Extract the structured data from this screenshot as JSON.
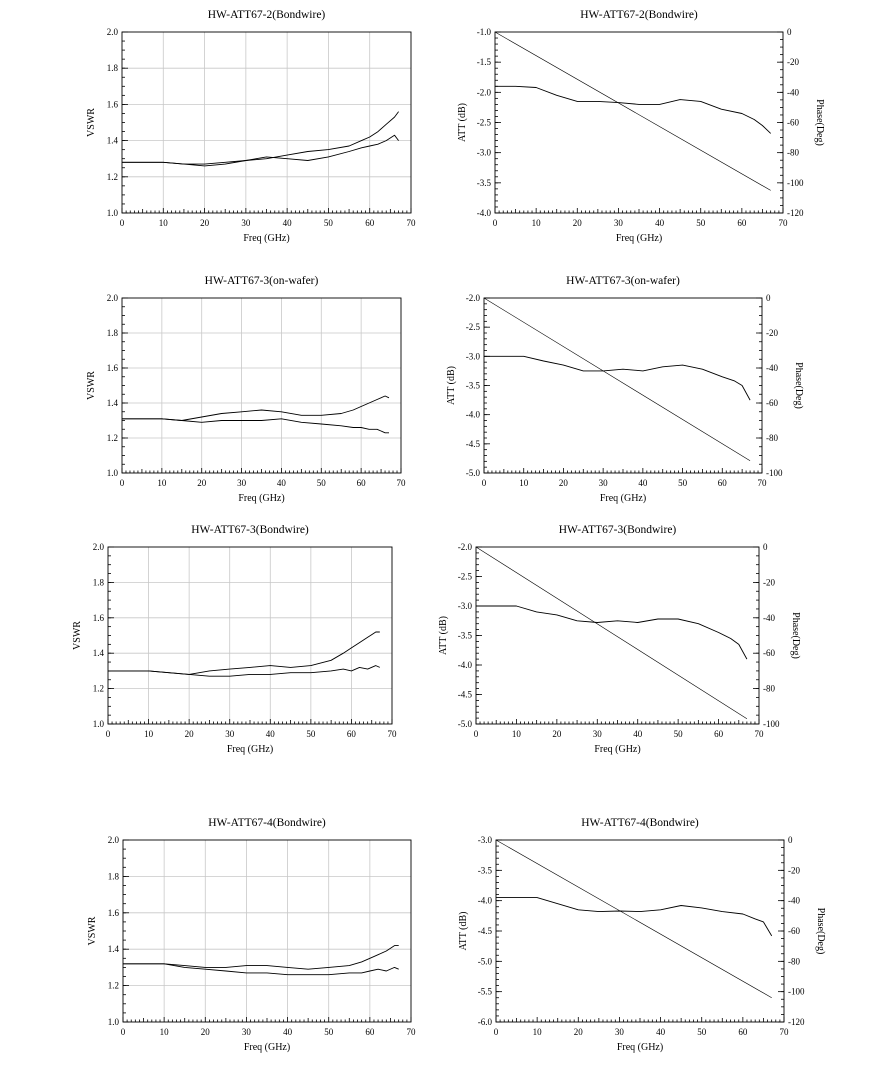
{
  "chart_data": [
    {
      "type": "line",
      "title": "HW-ATT67-2(Bondwire)",
      "xlabel": "Freq (GHz)",
      "ylabel": "VSWR",
      "xlim": [
        0,
        70
      ],
      "ylim": [
        1.0,
        2.0
      ],
      "xticks": [
        0,
        10,
        20,
        30,
        40,
        50,
        60,
        70
      ],
      "yticks": [
        "1.0",
        "1.2",
        "1.4",
        "1.6",
        "1.8",
        "2.0"
      ],
      "grid": true,
      "series": [
        {
          "x": [
            0,
            5,
            10,
            15,
            20,
            25,
            30,
            35,
            40,
            45,
            50,
            55,
            58,
            60,
            62,
            64,
            66,
            67
          ],
          "y": [
            1.28,
            1.28,
            1.28,
            1.27,
            1.27,
            1.28,
            1.29,
            1.3,
            1.32,
            1.34,
            1.35,
            1.37,
            1.4,
            1.42,
            1.45,
            1.49,
            1.53,
            1.56
          ]
        },
        {
          "x": [
            0,
            5,
            10,
            15,
            20,
            25,
            30,
            35,
            40,
            45,
            50,
            55,
            58,
            60,
            62,
            64,
            66,
            67
          ],
          "y": [
            1.28,
            1.28,
            1.28,
            1.27,
            1.26,
            1.27,
            1.29,
            1.31,
            1.3,
            1.29,
            1.31,
            1.34,
            1.36,
            1.37,
            1.38,
            1.4,
            1.43,
            1.4
          ]
        }
      ]
    },
    {
      "type": "line",
      "title": "HW-ATT67-2(Bondwire)",
      "xlabel": "Freq (GHz)",
      "ylabel": "ATT (dB)",
      "y2label": "Phase(Deg)",
      "xlim": [
        0,
        70
      ],
      "ylim": [
        -4.0,
        -1.0
      ],
      "y2lim": [
        -120,
        0
      ],
      "xticks": [
        0,
        10,
        20,
        30,
        40,
        50,
        60,
        70
      ],
      "yticks": [
        "-1.0",
        "-1.5",
        "-2.0",
        "-2.5",
        "-3.0",
        "-3.5",
        "-4.0"
      ],
      "y2ticks": [
        "0",
        "-20",
        "-40",
        "-60",
        "-80",
        "-100",
        "-120"
      ],
      "grid": false,
      "series": [
        {
          "axis": "left",
          "x": [
            0,
            5,
            10,
            15,
            20,
            25,
            30,
            35,
            40,
            45,
            50,
            55,
            60,
            63,
            65,
            67
          ],
          "y": [
            -1.9,
            -1.9,
            -1.92,
            -2.05,
            -2.15,
            -2.15,
            -2.17,
            -2.2,
            -2.2,
            -2.12,
            -2.15,
            -2.28,
            -2.35,
            -2.45,
            -2.55,
            -2.68
          ]
        },
        {
          "axis": "right",
          "x": [
            0,
            67
          ],
          "y": [
            0,
            -105
          ]
        }
      ]
    },
    {
      "type": "line",
      "title": "HW-ATT67-3(on-wafer)",
      "xlabel": "Freq (GHz)",
      "ylabel": "VSWR",
      "xlim": [
        0,
        70
      ],
      "ylim": [
        1.0,
        2.0
      ],
      "xticks": [
        0,
        10,
        20,
        30,
        40,
        50,
        60,
        70
      ],
      "yticks": [
        "1.0",
        "1.2",
        "1.4",
        "1.6",
        "1.8",
        "2.0"
      ],
      "grid": true,
      "series": [
        {
          "x": [
            0,
            5,
            10,
            15,
            20,
            25,
            30,
            35,
            40,
            45,
            50,
            55,
            58,
            60,
            62,
            64,
            66,
            67
          ],
          "y": [
            1.31,
            1.31,
            1.31,
            1.3,
            1.32,
            1.34,
            1.35,
            1.36,
            1.35,
            1.33,
            1.33,
            1.34,
            1.36,
            1.38,
            1.4,
            1.42,
            1.44,
            1.43
          ]
        },
        {
          "x": [
            0,
            5,
            10,
            15,
            20,
            25,
            30,
            35,
            40,
            45,
            50,
            55,
            58,
            60,
            62,
            64,
            66,
            67
          ],
          "y": [
            1.31,
            1.31,
            1.31,
            1.3,
            1.29,
            1.3,
            1.3,
            1.3,
            1.31,
            1.29,
            1.28,
            1.27,
            1.26,
            1.26,
            1.25,
            1.25,
            1.23,
            1.23
          ]
        }
      ]
    },
    {
      "type": "line",
      "title": "HW-ATT67-3(on-wafer)",
      "xlabel": "Freq (GHz)",
      "ylabel": "ATT (dB)",
      "y2label": "Phase(Deg)",
      "xlim": [
        0,
        70
      ],
      "ylim": [
        -5.0,
        -2.0
      ],
      "y2lim": [
        -100,
        0
      ],
      "xticks": [
        0,
        10,
        20,
        30,
        40,
        50,
        60,
        70
      ],
      "yticks": [
        "-2.0",
        "-2.5",
        "-3.0",
        "-3.5",
        "-4.0",
        "-4.5",
        "-5.0"
      ],
      "y2ticks": [
        "0",
        "-20",
        "-40",
        "-60",
        "-80",
        "-100"
      ],
      "grid": false,
      "series": [
        {
          "axis": "left",
          "x": [
            0,
            5,
            10,
            15,
            20,
            25,
            30,
            35,
            40,
            45,
            50,
            55,
            60,
            63,
            65,
            67
          ],
          "y": [
            -3.0,
            -3.0,
            -3.0,
            -3.08,
            -3.15,
            -3.25,
            -3.25,
            -3.22,
            -3.25,
            -3.18,
            -3.15,
            -3.22,
            -3.35,
            -3.42,
            -3.5,
            -3.75
          ]
        },
        {
          "axis": "right",
          "x": [
            0,
            67
          ],
          "y": [
            0,
            -93
          ]
        }
      ]
    },
    {
      "type": "line",
      "title": "HW-ATT67-3(Bondwire)",
      "xlabel": "Freq (GHz)",
      "ylabel": "VSWR",
      "xlim": [
        0,
        70
      ],
      "ylim": [
        1.0,
        2.0
      ],
      "xticks": [
        0,
        10,
        20,
        30,
        40,
        50,
        60,
        70
      ],
      "yticks": [
        "1.0",
        "1.2",
        "1.4",
        "1.6",
        "1.8",
        "2.0"
      ],
      "grid": true,
      "series": [
        {
          "x": [
            0,
            5,
            10,
            15,
            20,
            25,
            30,
            35,
            40,
            45,
            50,
            55,
            58,
            60,
            62,
            64,
            66,
            67
          ],
          "y": [
            1.3,
            1.3,
            1.3,
            1.29,
            1.28,
            1.3,
            1.31,
            1.32,
            1.33,
            1.32,
            1.33,
            1.36,
            1.4,
            1.43,
            1.46,
            1.49,
            1.52,
            1.52
          ]
        },
        {
          "x": [
            0,
            5,
            10,
            15,
            20,
            25,
            30,
            35,
            40,
            45,
            50,
            55,
            58,
            60,
            62,
            64,
            66,
            67
          ],
          "y": [
            1.3,
            1.3,
            1.3,
            1.29,
            1.28,
            1.27,
            1.27,
            1.28,
            1.28,
            1.29,
            1.29,
            1.3,
            1.31,
            1.3,
            1.32,
            1.31,
            1.33,
            1.32
          ]
        }
      ]
    },
    {
      "type": "line",
      "title": "HW-ATT67-3(Bondwire)",
      "xlabel": "Freq (GHz)",
      "ylabel": "ATT (dB)",
      "y2label": "Phase(Deg)",
      "xlim": [
        0,
        70
      ],
      "ylim": [
        -5.0,
        -2.0
      ],
      "y2lim": [
        -100,
        0
      ],
      "xticks": [
        0,
        10,
        20,
        30,
        40,
        50,
        60,
        70
      ],
      "yticks": [
        "-2.0",
        "-2.5",
        "-3.0",
        "-3.5",
        "-4.0",
        "-4.5",
        "-5.0"
      ],
      "y2ticks": [
        "0",
        "-20",
        "-40",
        "-60",
        "-80",
        "-100"
      ],
      "grid": false,
      "series": [
        {
          "axis": "left",
          "x": [
            0,
            5,
            10,
            15,
            20,
            25,
            30,
            35,
            40,
            45,
            50,
            55,
            60,
            63,
            65,
            67
          ],
          "y": [
            -3.0,
            -3.0,
            -3.0,
            -3.1,
            -3.15,
            -3.25,
            -3.28,
            -3.25,
            -3.28,
            -3.22,
            -3.22,
            -3.3,
            -3.45,
            -3.55,
            -3.65,
            -3.9
          ]
        },
        {
          "axis": "right",
          "x": [
            0,
            67
          ],
          "y": [
            0,
            -97
          ]
        }
      ]
    },
    {
      "type": "line",
      "title": "HW-ATT67-4(Bondwire)",
      "xlabel": "Freq (GHz)",
      "ylabel": "VSWR",
      "xlim": [
        0,
        70
      ],
      "ylim": [
        1.0,
        2.0
      ],
      "xticks": [
        0,
        10,
        20,
        30,
        40,
        50,
        60,
        70
      ],
      "yticks": [
        "1.0",
        "1.2",
        "1.4",
        "1.6",
        "1.8",
        "2.0"
      ],
      "grid": true,
      "series": [
        {
          "x": [
            0,
            5,
            10,
            15,
            20,
            25,
            30,
            35,
            40,
            45,
            50,
            55,
            58,
            60,
            62,
            64,
            66,
            67
          ],
          "y": [
            1.32,
            1.32,
            1.32,
            1.31,
            1.3,
            1.3,
            1.31,
            1.31,
            1.3,
            1.29,
            1.3,
            1.31,
            1.33,
            1.35,
            1.37,
            1.39,
            1.42,
            1.42
          ]
        },
        {
          "x": [
            0,
            5,
            10,
            15,
            20,
            25,
            30,
            35,
            40,
            45,
            50,
            55,
            58,
            60,
            62,
            64,
            66,
            67
          ],
          "y": [
            1.32,
            1.32,
            1.32,
            1.3,
            1.29,
            1.28,
            1.27,
            1.27,
            1.26,
            1.26,
            1.26,
            1.27,
            1.27,
            1.28,
            1.29,
            1.28,
            1.3,
            1.29
          ]
        }
      ]
    },
    {
      "type": "line",
      "title": "HW-ATT67-4(Bondwire)",
      "xlabel": "Freq (GHz)",
      "ylabel": "ATT (dB)",
      "y2label": "Phase(Deg)",
      "xlim": [
        0,
        70
      ],
      "ylim": [
        -6.0,
        -3.0
      ],
      "y2lim": [
        -120,
        0
      ],
      "xticks": [
        0,
        10,
        20,
        30,
        40,
        50,
        60,
        70
      ],
      "yticks": [
        "-3.0",
        "-3.5",
        "-4.0",
        "-4.5",
        "-5.0",
        "-5.5",
        "-6.0"
      ],
      "y2ticks": [
        "0",
        "-20",
        "-40",
        "-60",
        "-80",
        "-100",
        "-120"
      ],
      "grid": false,
      "series": [
        {
          "axis": "left",
          "x": [
            0,
            5,
            10,
            15,
            20,
            25,
            30,
            35,
            40,
            45,
            50,
            55,
            60,
            63,
            65,
            67
          ],
          "y": [
            -3.95,
            -3.95,
            -3.95,
            -4.05,
            -4.15,
            -4.18,
            -4.17,
            -4.18,
            -4.15,
            -4.08,
            -4.12,
            -4.18,
            -4.22,
            -4.3,
            -4.35,
            -4.58
          ]
        },
        {
          "axis": "right",
          "x": [
            0,
            67
          ],
          "y": [
            0,
            -104
          ]
        }
      ]
    }
  ]
}
